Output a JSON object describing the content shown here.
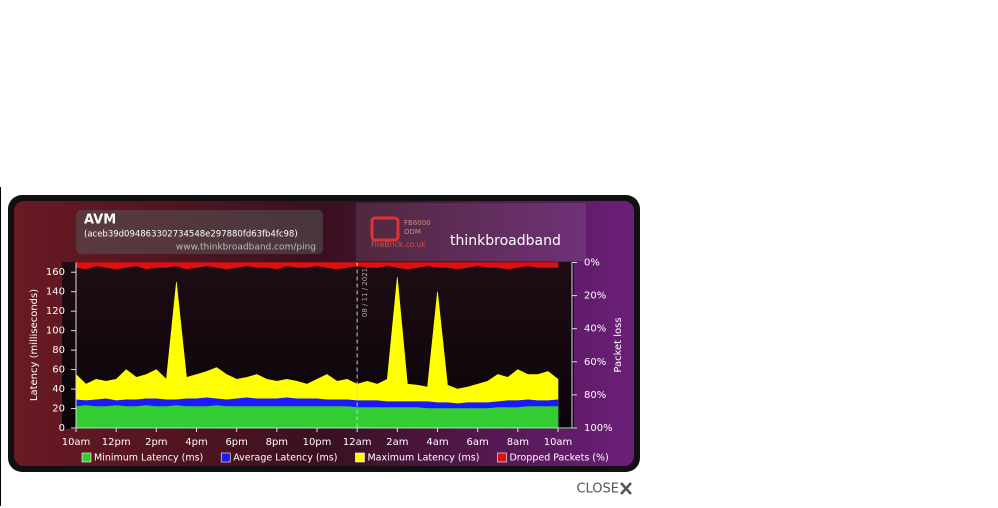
{
  "chart_data": {
    "type": "area",
    "title": "AVM",
    "subtitle": "(aceb39d094863302734548e297880fd63fb4fc98)",
    "source": "www.thinkbroadband.com/ping",
    "annotation": {
      "text": "08 / 11 / 2021",
      "category": "12am"
    },
    "ylabel": "Latency (milliseconds)",
    "y2label": "Packet loss",
    "categories": [
      "10am",
      null,
      null,
      null,
      "12pm",
      null,
      null,
      null,
      "2pm",
      null,
      null,
      null,
      "4pm",
      null,
      null,
      null,
      "6pm",
      null,
      null,
      null,
      "8pm",
      null,
      null,
      null,
      "10pm",
      null,
      null,
      null,
      "12am",
      null,
      null,
      null,
      "2am",
      null,
      null,
      null,
      "4am",
      null,
      null,
      null,
      "6am",
      null,
      null,
      null,
      "8am",
      null,
      null,
      null,
      "10am"
    ],
    "ylim": [
      0,
      170
    ],
    "yticks": [
      0,
      20,
      40,
      60,
      80,
      100,
      120,
      140,
      160
    ],
    "y2lim": [
      100,
      0
    ],
    "y2ticks": [
      {
        "value": 0,
        "label": "0%"
      },
      {
        "value": 20,
        "label": "20%"
      },
      {
        "value": 40,
        "label": "40%"
      },
      {
        "value": 60,
        "label": "60%"
      },
      {
        "value": 80,
        "label": "80%"
      },
      {
        "value": 100,
        "label": "100%"
      }
    ],
    "series": [
      {
        "name": "Maximum Latency (ms)",
        "color": "#ffff00",
        "values": [
          55,
          45,
          50,
          48,
          50,
          60,
          52,
          55,
          60,
          50,
          150,
          52,
          55,
          58,
          62,
          55,
          50,
          52,
          55,
          50,
          48,
          50,
          48,
          45,
          50,
          55,
          48,
          50,
          45,
          48,
          45,
          50,
          155,
          45,
          44,
          42,
          140,
          44,
          40,
          42,
          45,
          48,
          55,
          52,
          60,
          55,
          55,
          58,
          50
        ]
      },
      {
        "name": "Average Latency (ms)",
        "color": "#1a1aff",
        "values": [
          29,
          28,
          29,
          30,
          28,
          29,
          29,
          30,
          30,
          29,
          29,
          30,
          30,
          31,
          30,
          29,
          30,
          31,
          30,
          30,
          30,
          31,
          30,
          30,
          30,
          29,
          29,
          29,
          28,
          28,
          28,
          27,
          27,
          27,
          27,
          27,
          26,
          26,
          25,
          26,
          26,
          26,
          27,
          28,
          28,
          29,
          28,
          28,
          29
        ]
      },
      {
        "name": "Minimum Latency (ms)",
        "color": "#33cc33",
        "values": [
          22,
          23,
          22,
          22,
          23,
          22,
          22,
          23,
          22,
          22,
          23,
          22,
          22,
          22,
          23,
          22,
          22,
          22,
          22,
          22,
          22,
          22,
          22,
          22,
          22,
          22,
          22,
          22,
          21,
          21,
          21,
          21,
          21,
          21,
          21,
          20,
          20,
          20,
          20,
          20,
          20,
          20,
          21,
          21,
          21,
          22,
          22,
          22,
          22
        ]
      },
      {
        "name": "Dropped Packets (%)",
        "color": "#dd1111",
        "axis": "y2",
        "values": [
          3,
          4,
          2,
          3,
          4,
          3,
          2,
          4,
          3,
          3,
          2,
          4,
          3,
          2,
          3,
          4,
          3,
          2,
          3,
          3,
          4,
          2,
          3,
          3,
          2,
          3,
          4,
          3,
          2,
          3,
          3,
          2,
          3,
          4,
          3,
          2,
          3,
          3,
          4,
          3,
          2,
          3,
          3,
          4,
          3,
          2,
          3,
          3,
          3
        ]
      }
    ],
    "legend_order": [
      2,
      1,
      0,
      3
    ]
  },
  "branding": {
    "firebrick": [
      "FB6000",
      "ODM",
      "FireBrick.co.uk"
    ],
    "logo": "thinkbroadband"
  },
  "close": "CLOSE"
}
